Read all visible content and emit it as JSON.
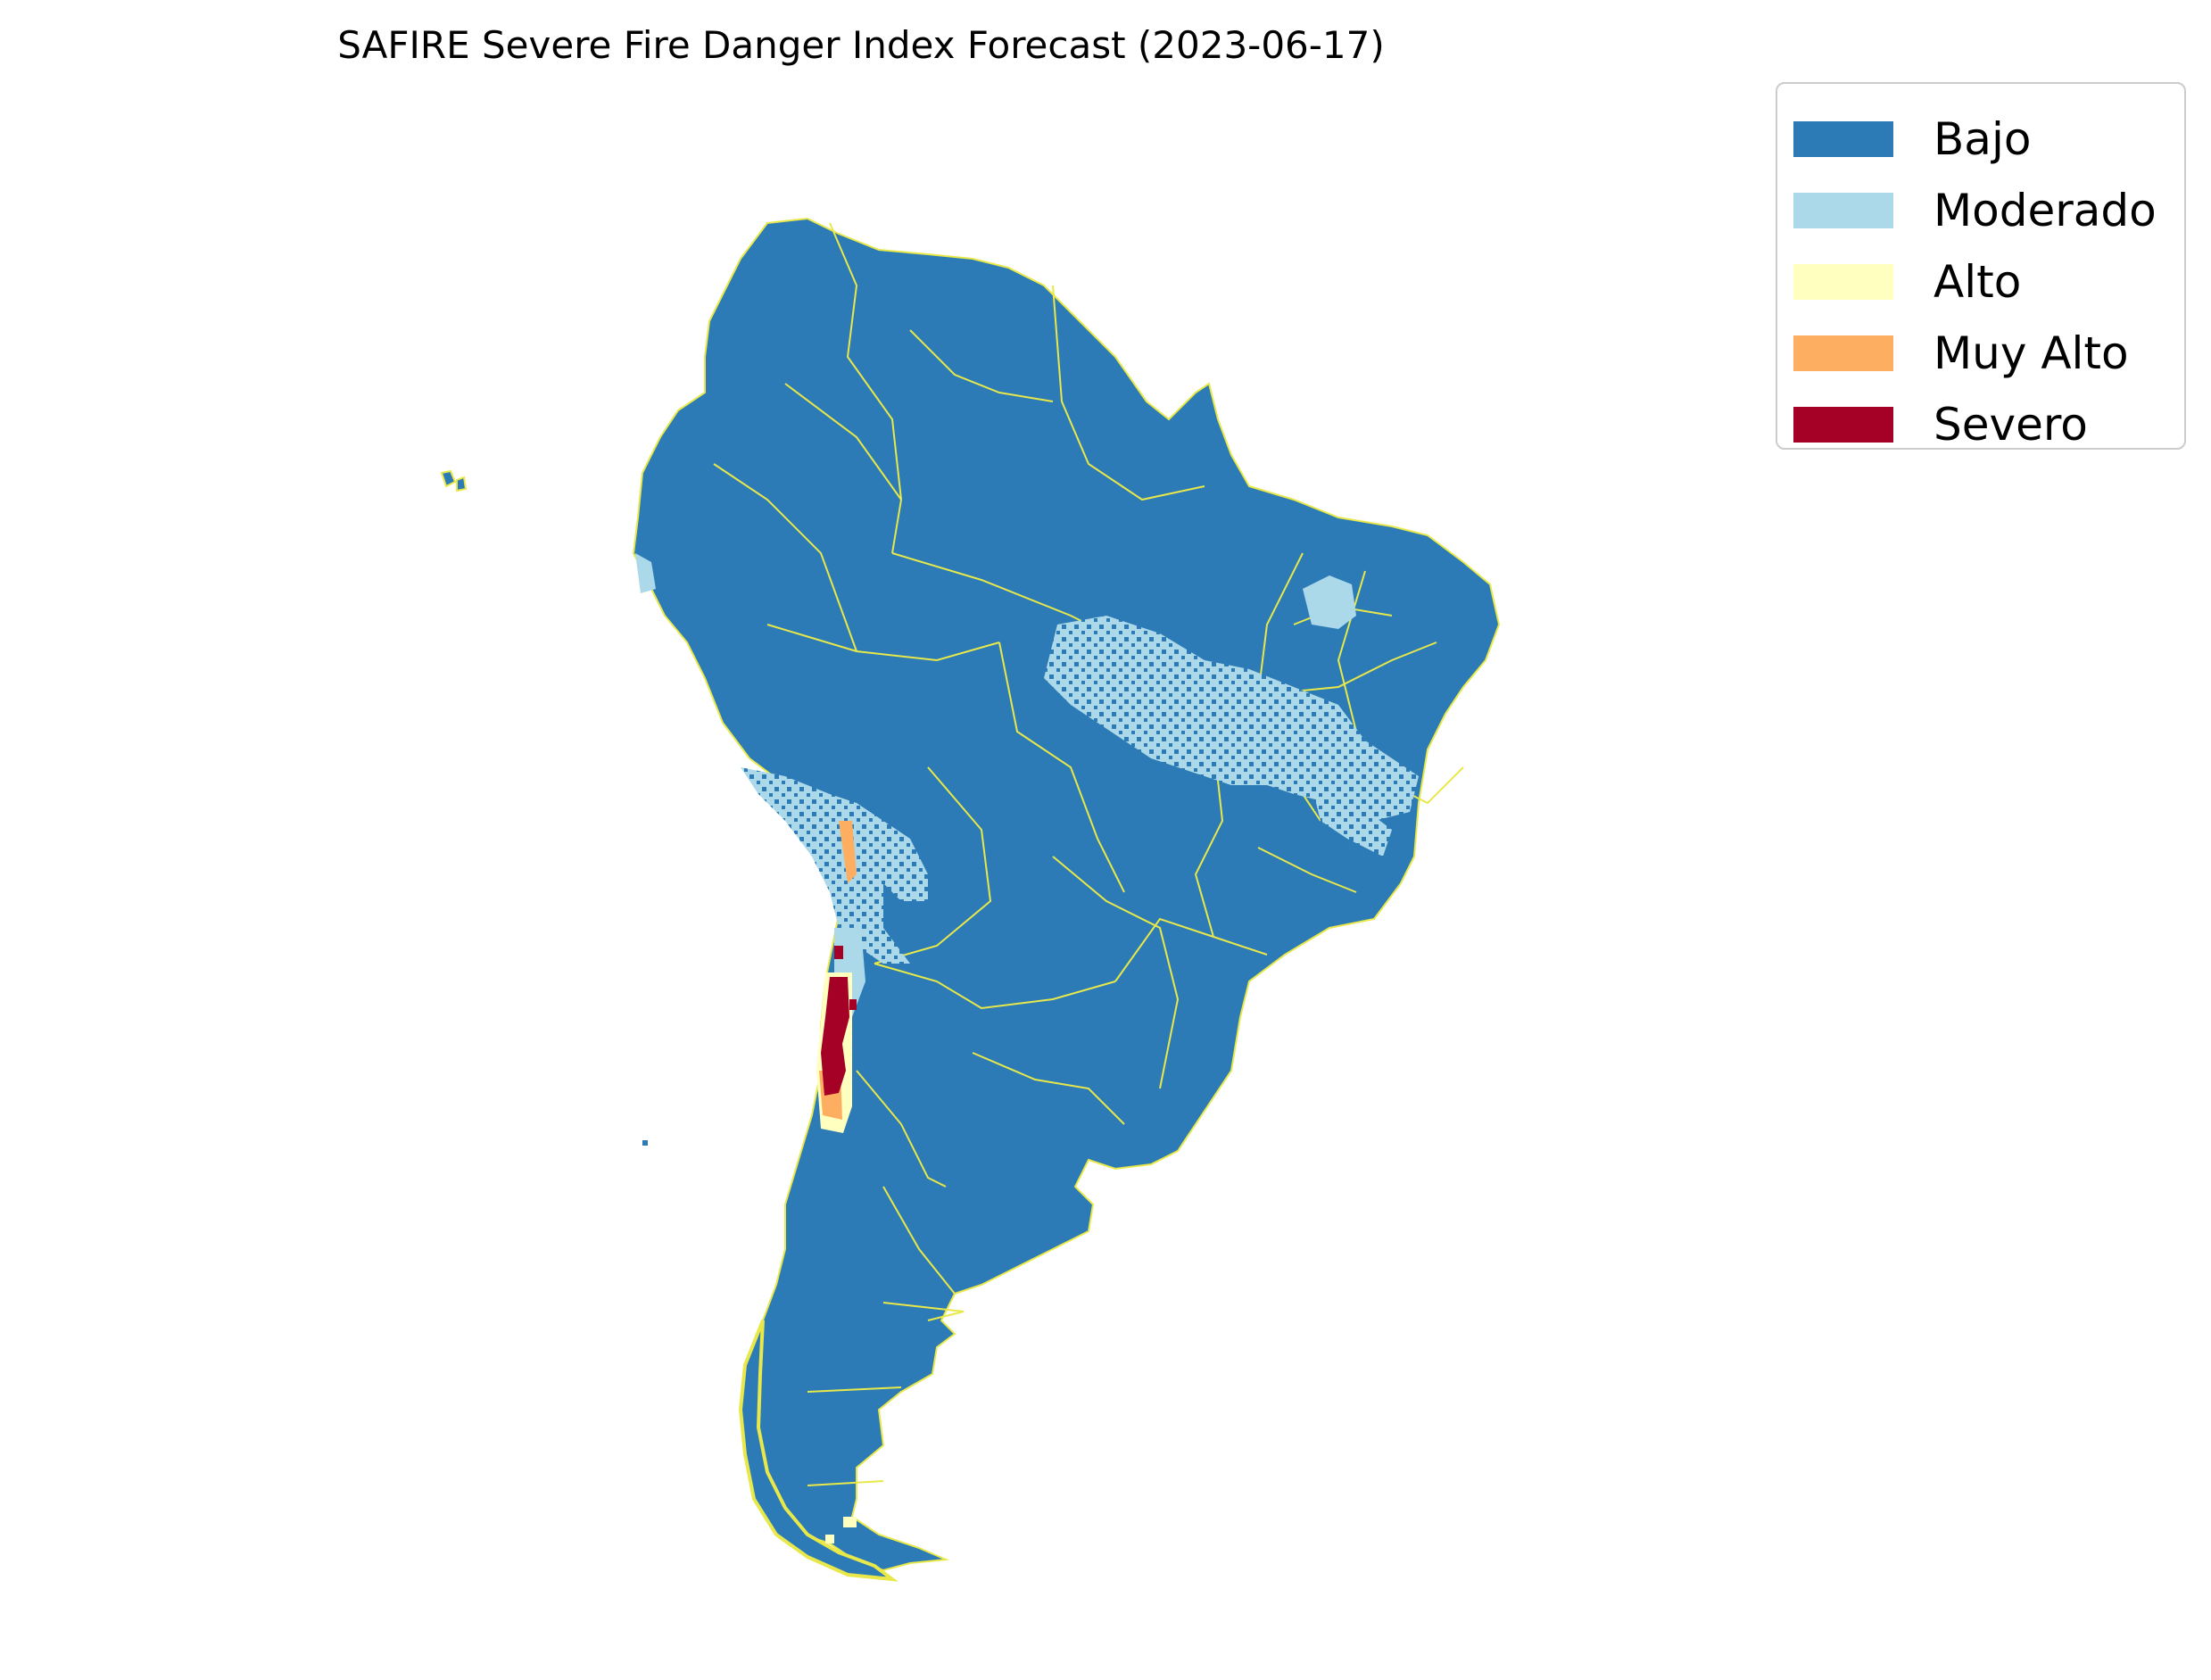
{
  "title": "SAFIRE Severe Fire Danger Index Forecast (2023-06-17)",
  "legend": {
    "items": [
      {
        "label": "Bajo",
        "color": "#2c7bb6"
      },
      {
        "label": "Moderado",
        "color": "#abd9e9"
      },
      {
        "label": "Alto",
        "color": "#ffffbf"
      },
      {
        "label": "Muy Alto",
        "color": "#fdae61"
      },
      {
        "label": "Severo",
        "color": "#a50026"
      }
    ],
    "placement": "upper right, outside map"
  },
  "colors": {
    "border_lines": "#e8e84a",
    "background": "#ffffff"
  }
}
